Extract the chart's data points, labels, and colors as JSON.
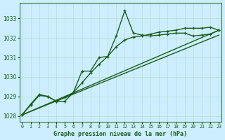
{
  "bg_color": "#cceeff",
  "grid_color": "#b8ddd0",
  "line_color": "#1a5c1a",
  "text_color": "#1a5c1a",
  "xlabel": "Graphe pression niveau de la mer (hPa)",
  "ylim": [
    1027.7,
    1033.8
  ],
  "xlim": [
    -0.3,
    23.3
  ],
  "yticks": [
    1028,
    1029,
    1030,
    1031,
    1032,
    1033
  ],
  "xtick_labels": [
    "0",
    "1",
    "2",
    "3",
    "4",
    "5",
    "6",
    "7",
    "8",
    "9",
    "10",
    "11",
    "12",
    "13",
    "14",
    "15",
    "16",
    "17",
    "18",
    "19",
    "20",
    "21",
    "22",
    "23"
  ],
  "series": [
    {
      "x": [
        0,
        1,
        2,
        3,
        4,
        5,
        6,
        7,
        8,
        9,
        10,
        11,
        12,
        13,
        14,
        15,
        16,
        17,
        18,
        19,
        20,
        21,
        22,
        23
      ],
      "y": [
        1028.05,
        1028.55,
        1029.05,
        1029.0,
        1028.75,
        1028.75,
        1029.2,
        1030.3,
        1030.3,
        1031.0,
        1031.05,
        1032.1,
        1033.4,
        1032.25,
        1032.15,
        1032.1,
        1032.15,
        1032.2,
        1032.25,
        1032.25,
        1032.1,
        1032.15,
        1032.2,
        1032.4
      ],
      "marker": "+",
      "lw": 1.0
    },
    {
      "x": [
        0,
        1,
        2,
        3,
        4,
        5,
        6,
        7,
        8,
        9,
        10,
        11,
        12,
        13,
        14,
        15,
        16,
        17,
        18,
        19,
        20,
        21,
        22,
        23
      ],
      "y": [
        1028.05,
        1028.6,
        1029.1,
        1029.0,
        1028.75,
        1028.95,
        1029.2,
        1029.7,
        1030.2,
        1030.65,
        1031.05,
        1031.55,
        1031.9,
        1032.05,
        1032.1,
        1032.2,
        1032.3,
        1032.35,
        1032.4,
        1032.5,
        1032.5,
        1032.5,
        1032.55,
        1032.4
      ],
      "marker": "+",
      "lw": 1.0
    },
    {
      "x": [
        0,
        23
      ],
      "y": [
        1028.05,
        1032.4
      ],
      "marker": null,
      "lw": 1.0
    },
    {
      "x": [
        0,
        23
      ],
      "y": [
        1028.05,
        1032.15
      ],
      "marker": null,
      "lw": 1.0
    }
  ]
}
